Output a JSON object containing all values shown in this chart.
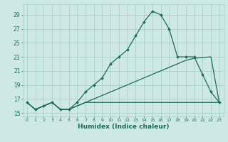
{
  "xlabel": "Humidex (Indice chaleur)",
  "bg_color": "#cde8e5",
  "grid_color": "#aacfcc",
  "line_color": "#1c6b5c",
  "xlim": [
    -0.5,
    23.5
  ],
  "ylim": [
    14.5,
    30.5
  ],
  "yticks": [
    15,
    17,
    19,
    21,
    23,
    25,
    27,
    29
  ],
  "xticks": [
    0,
    1,
    2,
    3,
    4,
    5,
    6,
    7,
    8,
    9,
    10,
    11,
    12,
    13,
    14,
    15,
    16,
    17,
    18,
    19,
    20,
    21,
    22,
    23
  ],
  "series1_x": [
    0,
    1,
    2,
    3,
    4,
    5,
    6,
    7,
    8,
    9,
    10,
    11,
    12,
    13,
    14,
    15,
    16,
    17,
    18,
    19,
    20,
    21,
    22,
    23
  ],
  "series1_y": [
    16.5,
    15.5,
    16.0,
    16.5,
    15.5,
    15.5,
    16.5,
    18.0,
    19.0,
    20.0,
    22.0,
    23.0,
    24.0,
    26.0,
    28.0,
    29.5,
    29.0,
    27.0,
    23.0,
    23.0,
    23.0,
    20.5,
    18.0,
    16.5
  ],
  "series2_x": [
    0,
    1,
    2,
    3,
    4,
    5,
    6,
    7,
    8,
    9,
    10,
    11,
    12,
    13,
    14,
    15,
    16,
    17,
    18,
    19,
    20,
    21,
    22,
    23
  ],
  "series2_y": [
    16.5,
    15.5,
    16.0,
    16.5,
    15.5,
    15.5,
    16.0,
    16.5,
    16.5,
    16.5,
    16.5,
    16.5,
    16.5,
    16.5,
    16.5,
    16.5,
    16.5,
    16.5,
    16.5,
    16.5,
    16.5,
    16.5,
    16.5,
    16.5
  ],
  "series3_x": [
    0,
    1,
    2,
    3,
    4,
    5,
    6,
    7,
    8,
    9,
    10,
    11,
    12,
    13,
    14,
    15,
    16,
    17,
    18,
    19,
    20,
    21,
    22,
    23
  ],
  "series3_y": [
    16.5,
    15.5,
    16.0,
    16.5,
    15.5,
    15.5,
    16.0,
    16.5,
    17.0,
    17.5,
    18.0,
    18.5,
    19.0,
    19.5,
    20.0,
    20.5,
    21.0,
    21.5,
    22.0,
    22.5,
    22.8,
    22.9,
    23.0,
    16.5
  ],
  "marker_style": "D",
  "marker_size": 2.0,
  "line_width": 0.9,
  "tick_fontsize": 5.5,
  "xlabel_fontsize": 6.5
}
